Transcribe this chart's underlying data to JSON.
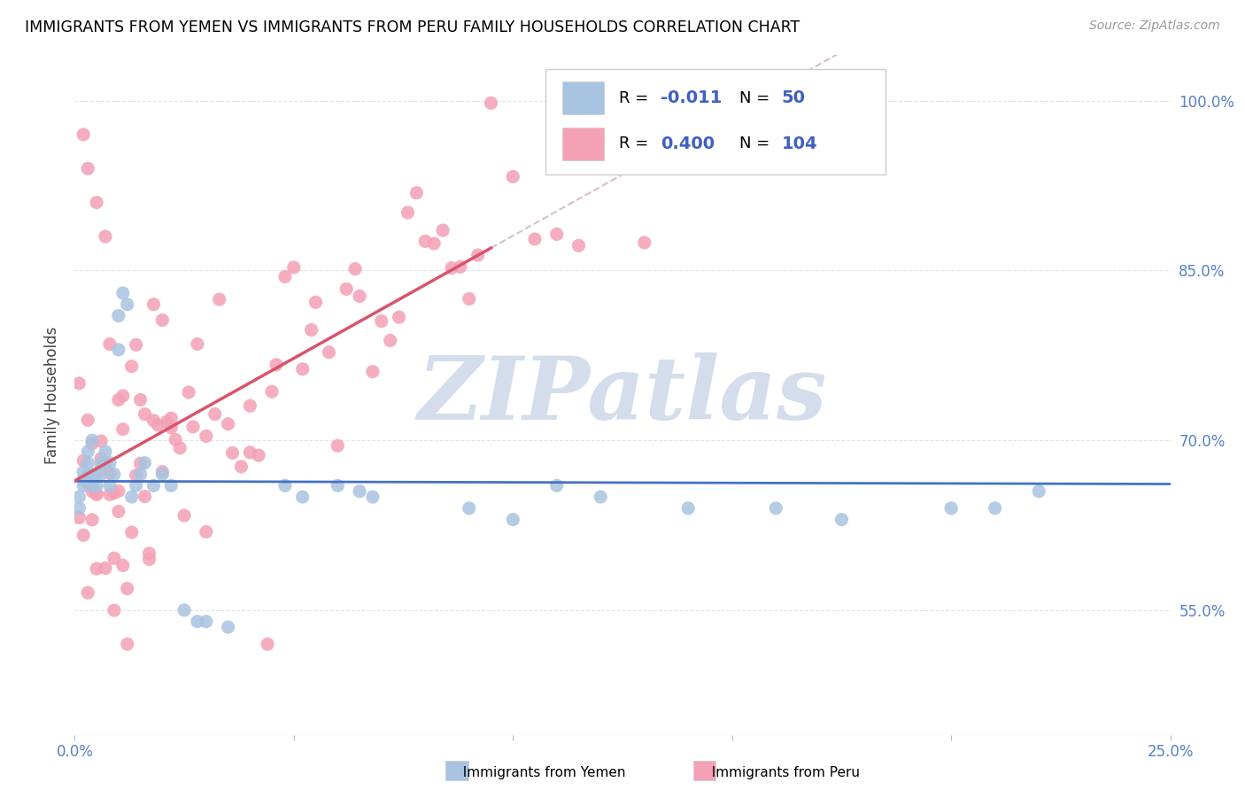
{
  "title": "IMMIGRANTS FROM YEMEN VS IMMIGRANTS FROM PERU FAMILY HOUSEHOLDS CORRELATION CHART",
  "source": "Source: ZipAtlas.com",
  "ylabel": "Family Households",
  "ytick_vals": [
    0.55,
    0.7,
    0.85,
    1.0
  ],
  "ytick_labels": [
    "55.0%",
    "70.0%",
    "85.0%",
    "100.0%"
  ],
  "xmin": 0.0,
  "xmax": 0.25,
  "ymin": 0.44,
  "ymax": 1.04,
  "legend_r_yemen": "-0.011",
  "legend_n_yemen": "50",
  "legend_r_peru": "0.400",
  "legend_n_peru": "104",
  "color_yemen": "#a8c4e0",
  "color_peru": "#f4a0b5",
  "trendline_yemen_color": "#4472c4",
  "trendline_peru_color": "#d9546a",
  "trendline_diag_color": "#d8c0c8",
  "watermark_text": "ZIPatlas",
  "watermark_color": "#ccd8e8",
  "grid_color": "#e0e0e8",
  "ylabel_color": "#404040",
  "tick_label_color": "#5580c8",
  "legend_text_color_black": "#000000",
  "legend_value_color": "#4060c0",
  "bottom_legend_square_yemen": "#a8c4e0",
  "bottom_legend_square_peru": "#f4a0b5"
}
